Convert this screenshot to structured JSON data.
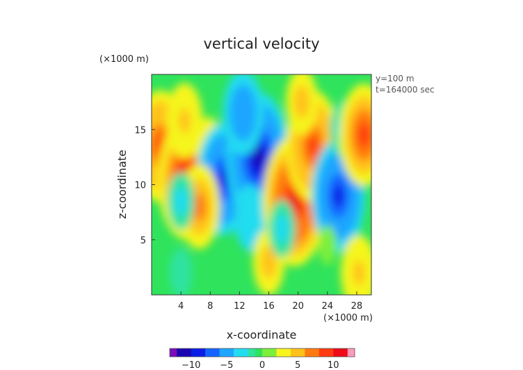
{
  "chart_data": {
    "type": "heatmap",
    "title": "vertical velocity",
    "xlabel": "x-coordinate",
    "ylabel": "z-coordinate",
    "x_unit": "(×1000 m)",
    "y_unit": "(×1000 m)",
    "xlim": [
      0,
      30
    ],
    "ylim": [
      0,
      20
    ],
    "xticks": [
      4,
      8,
      12,
      16,
      20,
      24,
      28
    ],
    "yticks": [
      5,
      10,
      15
    ],
    "annotations": [
      "y=100 m",
      "t=164000 sec"
    ],
    "colorbar": {
      "ticks": [
        -10,
        -5,
        0,
        5,
        10
      ],
      "range": [
        -13,
        13
      ]
    },
    "features": [
      {
        "x": 1.2,
        "z": 13.5,
        "value": 9
      },
      {
        "x": 4.8,
        "z": 10.5,
        "value": 10
      },
      {
        "x": 4.5,
        "z": 15.8,
        "value": 5
      },
      {
        "x": 7.8,
        "z": 13.5,
        "value": 3
      },
      {
        "x": 9.8,
        "z": 10.5,
        "value": -9
      },
      {
        "x": 14.5,
        "z": 12.5,
        "value": -11
      },
      {
        "x": 12.5,
        "z": 16.5,
        "value": -6
      },
      {
        "x": 13.5,
        "z": 7.0,
        "value": -4
      },
      {
        "x": 19.5,
        "z": 8.5,
        "value": 11
      },
      {
        "x": 22.0,
        "z": 13.5,
        "value": 9
      },
      {
        "x": 20.5,
        "z": 17.5,
        "value": 4
      },
      {
        "x": 25.5,
        "z": 9.0,
        "value": -9
      },
      {
        "x": 26.2,
        "z": 15.0,
        "value": -3
      },
      {
        "x": 29.0,
        "z": 14.5,
        "value": 8
      },
      {
        "x": 28.3,
        "z": 2.0,
        "value": 5
      },
      {
        "x": 16.0,
        "z": 3.0,
        "value": 4
      },
      {
        "x": 17.8,
        "z": 6.0,
        "value": -3
      },
      {
        "x": 4.0,
        "z": 2.0,
        "value": -2
      },
      {
        "x": 6.5,
        "z": 8.0,
        "value": 6
      },
      {
        "x": 4.0,
        "z": 8.5,
        "value": -3
      },
      {
        "x": 24.0,
        "z": 4.5,
        "value": 1
      }
    ]
  }
}
